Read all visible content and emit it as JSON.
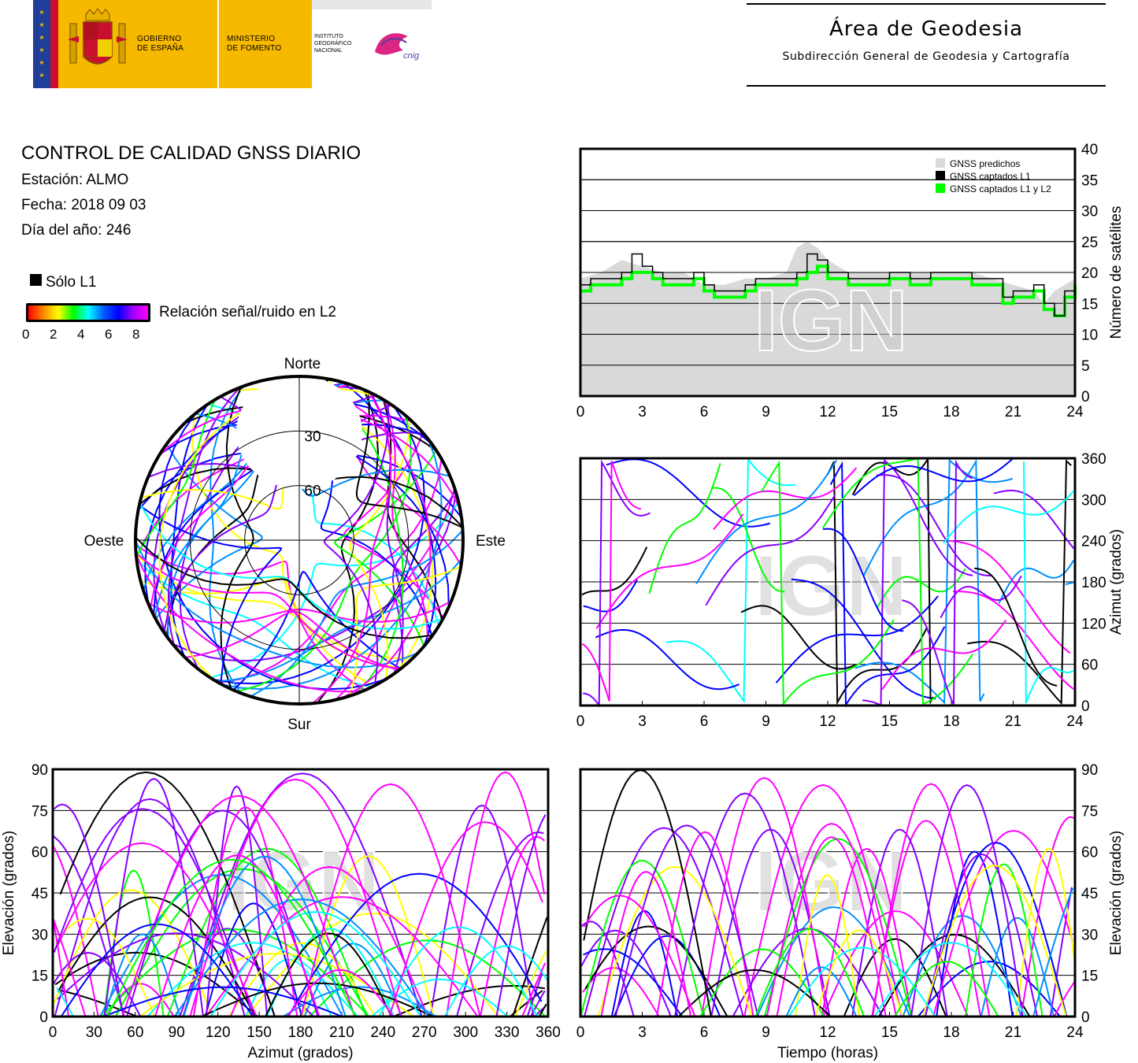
{
  "header": {
    "gobierno": "GOBIERNO\nDE ESPAÑA",
    "ministerio": "MINISTERIO\nDE FOMENTO",
    "instituto": "INSTITUTO\nGEOGRÁFICO\nNACIONAL",
    "cnig": "cnig",
    "area_title": "Área de Geodesia",
    "area_subtitle": "Subdirección General de Geodesia y Cartografía"
  },
  "info": {
    "title": "CONTROL DE CALIDAD GNSS DIARIO",
    "station": "Estación: ALMO",
    "date": "Fecha: 2018 09 03",
    "doy": "Día del año: 246",
    "only_l1": "Sólo L1",
    "snr_label": "Relación señal/ruido en L2",
    "snr_ticks": [
      "0",
      "2",
      "4",
      "6",
      "8"
    ],
    "snr_colors": [
      "#ff0000",
      "#ff8800",
      "#ffff00",
      "#00ff00",
      "#00ffff",
      "#0060ff",
      "#0000ff",
      "#a000ff",
      "#ff00ff"
    ]
  },
  "watermark": "IGN",
  "chart_data": [
    {
      "id": "satellite-count",
      "type": "line",
      "xlabel": "",
      "ylabel": "Número de satélites",
      "xlim": [
        0,
        24
      ],
      "ylim": [
        0,
        40
      ],
      "xticks": [
        "0",
        "3",
        "6",
        "9",
        "12",
        "15",
        "18",
        "21",
        "24"
      ],
      "yticks": [
        "0",
        "5",
        "10",
        "15",
        "20",
        "25",
        "30",
        "35",
        "40"
      ],
      "legend": [
        "GNSS predichos",
        "GNSS captados L1",
        "GNSS captados L1 y L2"
      ],
      "legend_position": "top-right",
      "series": [
        {
          "name": "GNSS predichos",
          "color": "#d9d9d9",
          "x": [
            0,
            1,
            2,
            3,
            4,
            5,
            6,
            7,
            8,
            9,
            10,
            10.5,
            11,
            11.5,
            12,
            13,
            14,
            15,
            16,
            17,
            18,
            19,
            20,
            21,
            22,
            22.5,
            23,
            24
          ],
          "y": [
            19,
            20,
            22,
            21,
            20,
            20,
            18,
            18,
            19,
            19,
            20,
            24,
            25,
            24,
            22,
            20,
            20,
            20,
            20,
            20,
            20,
            20,
            19,
            18,
            17,
            15,
            17,
            19
          ]
        },
        {
          "name": "GNSS captados L1",
          "color": "#000000",
          "x": [
            0,
            0.5,
            1,
            2,
            2.5,
            3,
            3.5,
            4,
            5,
            5.5,
            6,
            6.5,
            7,
            8,
            8.5,
            9,
            10,
            10.5,
            11,
            11.5,
            12,
            13,
            14,
            15,
            16,
            17,
            18,
            19,
            20,
            20.5,
            21,
            22,
            22.5,
            23,
            23.5,
            24
          ],
          "y": [
            18,
            19,
            19,
            20,
            23,
            21,
            20,
            19,
            19,
            20,
            18,
            17,
            17,
            18,
            19,
            19,
            19,
            20,
            23,
            22,
            20,
            19,
            19,
            20,
            19,
            20,
            20,
            19,
            19,
            16,
            17,
            18,
            15,
            13,
            17,
            19
          ]
        },
        {
          "name": "GNSS captados L1 y L2",
          "color": "#00ff00",
          "x": [
            0,
            0.5,
            1,
            2,
            2.5,
            3,
            3.5,
            4,
            5,
            5.5,
            6,
            6.5,
            7,
            8,
            8.5,
            9,
            10,
            10.5,
            11,
            11.5,
            12,
            13,
            14,
            15,
            16,
            17,
            18,
            19,
            20,
            20.5,
            21,
            22,
            22.5,
            23,
            23.5,
            24
          ],
          "y": [
            17,
            18,
            18,
            19,
            20,
            20,
            19,
            18,
            18,
            19,
            17,
            16,
            16,
            17,
            18,
            18,
            18,
            19,
            20,
            21,
            19,
            18,
            18,
            19,
            18,
            19,
            19,
            18,
            18,
            15,
            16,
            17,
            14,
            13,
            16,
            18
          ]
        }
      ]
    },
    {
      "id": "azimuth-time",
      "type": "scatter",
      "xlabel": "",
      "ylabel": "Azimut (grados)",
      "xlim": [
        0,
        24
      ],
      "ylim": [
        0,
        360
      ],
      "xticks": [
        "0",
        "3",
        "6",
        "9",
        "12",
        "15",
        "18",
        "21",
        "24"
      ],
      "yticks": [
        "0",
        "60",
        "120",
        "180",
        "240",
        "300",
        "360"
      ]
    },
    {
      "id": "skyplot",
      "type": "scatter",
      "labels": {
        "north": "Norte",
        "south": "Sur",
        "east": "Este",
        "west": "Oeste"
      },
      "ring_labels": [
        "30",
        "60"
      ]
    },
    {
      "id": "elevation-azimuth",
      "type": "scatter",
      "xlabel": "Azimut (grados)",
      "ylabel": "Elevación (grados)",
      "xlim": [
        0,
        360
      ],
      "ylim": [
        0,
        90
      ],
      "xticks": [
        "0",
        "30",
        "60",
        "90",
        "120",
        "150",
        "180",
        "210",
        "240",
        "270",
        "300",
        "330",
        "360"
      ],
      "yticks": [
        "0",
        "15",
        "30",
        "45",
        "60",
        "75",
        "90"
      ]
    },
    {
      "id": "elevation-time",
      "type": "scatter",
      "xlabel": "Tiempo (horas)",
      "ylabel": "Elevación (grados)",
      "xlim": [
        0,
        24
      ],
      "ylim": [
        0,
        90
      ],
      "xticks": [
        "0",
        "3",
        "6",
        "9",
        "12",
        "15",
        "18",
        "21",
        "24"
      ],
      "yticks": [
        "0",
        "15",
        "30",
        "45",
        "60",
        "75",
        "90"
      ]
    }
  ]
}
